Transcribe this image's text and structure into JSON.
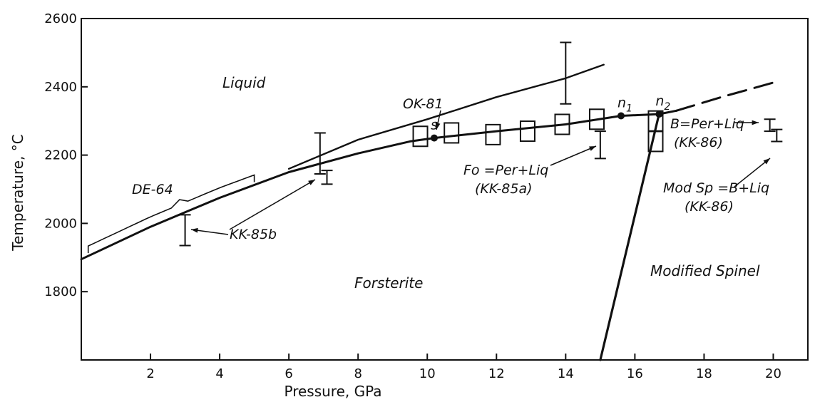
{
  "chart_data": {
    "type": "line",
    "xlabel": "Pressure, GPa",
    "ylabel": "Temperature, °C",
    "xlim": [
      0,
      21
    ],
    "ylim": [
      1600,
      2600
    ],
    "x_ticks": [
      2,
      4,
      6,
      8,
      10,
      12,
      14,
      16,
      18,
      20
    ],
    "y_ticks": [
      1800,
      2000,
      2200,
      2400,
      2600
    ],
    "grid": false,
    "region_labels": {
      "liquid": "Liquid",
      "forsterite": "Forsterite",
      "modified_spinel": "Modified Spinel"
    },
    "curves": {
      "ok81": {
        "label": "OK-81",
        "points": [
          [
            6.0,
            2160
          ],
          [
            8.0,
            2245
          ],
          [
            10.0,
            2305
          ],
          [
            12.0,
            2370
          ],
          [
            14.0,
            2425
          ],
          [
            15.1,
            2465
          ]
        ]
      },
      "melting": {
        "points": [
          [
            0.0,
            1895
          ],
          [
            2.0,
            1990
          ],
          [
            4.0,
            2075
          ],
          [
            6.0,
            2150
          ],
          [
            8.0,
            2205
          ],
          [
            9.5,
            2240
          ],
          [
            10.2,
            2250
          ],
          [
            12.0,
            2270
          ],
          [
            14.0,
            2290
          ],
          [
            15.6,
            2315
          ],
          [
            16.7,
            2320
          ],
          [
            17.2,
            2330
          ]
        ]
      },
      "melting_dashed": {
        "points": [
          [
            17.2,
            2330
          ],
          [
            18.5,
            2370
          ],
          [
            20.1,
            2415
          ]
        ]
      },
      "phase_boundary": {
        "points": [
          [
            15.0,
            1600
          ],
          [
            16.7,
            2320
          ]
        ]
      },
      "de64_brace": {
        "label": "DE-64",
        "x_range": [
          0.2,
          5.0
        ]
      }
    },
    "points": [
      {
        "label": "s",
        "x": 10.2,
        "y": 2250
      },
      {
        "label": "n",
        "sub": "1",
        "x": 15.6,
        "y": 2315
      },
      {
        "label": "n",
        "sub": "2",
        "x": 16.7,
        "y": 2320
      }
    ],
    "boxes": [
      {
        "x": 9.8,
        "y": 2255
      },
      {
        "x": 10.7,
        "y": 2265
      },
      {
        "x": 11.9,
        "y": 2260
      },
      {
        "x": 12.9,
        "y": 2270
      },
      {
        "x": 13.9,
        "y": 2290
      },
      {
        "x": 14.9,
        "y": 2305
      },
      {
        "x": 16.6,
        "y": 2300
      },
      {
        "x": 16.6,
        "y": 2240
      }
    ],
    "error_bars": [
      {
        "x": 3.0,
        "low": 1935,
        "high": 2025
      },
      {
        "x": 6.9,
        "low": 2145,
        "high": 2265
      },
      {
        "x": 7.1,
        "low": 2115,
        "high": 2155
      },
      {
        "x": 14.0,
        "low": 2350,
        "high": 2530
      },
      {
        "x": 15.0,
        "low": 2190,
        "high": 2270
      },
      {
        "x": 19.9,
        "low": 2270,
        "high": 2305
      },
      {
        "x": 20.1,
        "low": 2240,
        "high": 2275
      }
    ],
    "annotations": {
      "kk85b": "KK-85b",
      "fo_eq": "Fo =Per+Liq",
      "kk85a": "(KK-85a)",
      "b_eq": "B=Per+Liq",
      "kk86_upper": "(KK-86)",
      "modsp_eq": "Mod Sp =B+Liq",
      "kk86_lower": "(KK-86)"
    }
  }
}
